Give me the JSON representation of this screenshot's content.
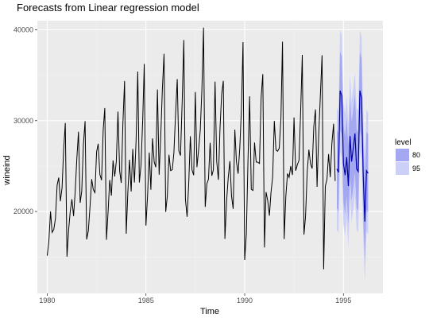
{
  "chart_data": {
    "type": "line",
    "title": "Forecasts from Linear regression model",
    "xlabel": "Time",
    "ylabel": "wineind",
    "xlim": [
      1979.5,
      1997.0
    ],
    "ylim": [
      11000,
      41000
    ],
    "x_ticks": [
      1980,
      1985,
      1990,
      1995
    ],
    "y_ticks": [
      20000,
      30000,
      40000
    ],
    "grid": true,
    "legend": {
      "title": "level",
      "position": "right",
      "entries": [
        {
          "label": "80",
          "color": "#a3a8f0"
        },
        {
          "label": "95",
          "color": "#ccd0f7"
        }
      ]
    },
    "colors": {
      "panel": "#ebebeb",
      "grid_major": "#ffffff",
      "history": "#000000",
      "forecast": "#0000aa",
      "band80": "#a3a8f0",
      "band95": "#ccd0f7"
    },
    "history": {
      "start": 1980.0,
      "frequency": 12,
      "values": [
        15136,
        16733,
        20016,
        17708,
        18019,
        19227,
        22893,
        23739,
        21133,
        22591,
        26786,
        29740,
        15028,
        17977,
        20008,
        21354,
        19498,
        22125,
        25817,
        28779,
        20960,
        22254,
        27392,
        29945,
        16933,
        17892,
        20533,
        23569,
        22417,
        22084,
        26580,
        27454,
        24081,
        23451,
        28991,
        31386,
        16896,
        20045,
        23471,
        21747,
        25621,
        23859,
        25500,
        30998,
        24475,
        23145,
        29701,
        34365,
        17556,
        22077,
        25702,
        22214,
        26886,
        23191,
        27831,
        35406,
        23195,
        25110,
        30009,
        36242,
        18450,
        21845,
        26488,
        22394,
        28057,
        25451,
        24872,
        33424,
        24052,
        28449,
        33533,
        37351,
        19969,
        21701,
        26249,
        24493,
        24603,
        26485,
        30723,
        34569,
        26689,
        26157,
        32064,
        38870,
        21337,
        19419,
        23166,
        28286,
        24570,
        24001,
        33151,
        24878,
        26804,
        28967,
        33311,
        40226,
        20504,
        23060,
        23562,
        27562,
        23940,
        24584,
        34303,
        25517,
        23494,
        29095,
        32903,
        34379,
        16991,
        21109,
        23740,
        25552,
        21752,
        20294,
        29009,
        25500,
        24166,
        26960,
        31222,
        38641,
        14672,
        17543,
        25453,
        32683,
        22449,
        22316,
        27595,
        25451,
        25421,
        25288,
        32568,
        35110,
        16052,
        22146,
        21198,
        19543,
        22084,
        23816,
        29961,
        26773,
        26635,
        26972,
        30207,
        38687,
        16974,
        21697,
        24179,
        23757,
        25013,
        24019,
        30345,
        24488,
        25156,
        25650,
        30923,
        37240,
        17466,
        19463,
        24352,
        26805,
        25236,
        24735,
        29356,
        31234,
        22724,
        28496,
        32857,
        37198,
        13652,
        22784,
        23565,
        26323,
        23779,
        27549,
        29660,
        23356
      ]
    },
    "forecast": {
      "start": 1994.6667,
      "frequency": 12,
      "mean": [
        24700,
        24300,
        33300,
        32700,
        25300,
        24000,
        26000,
        22800,
        28300,
        25500,
        27000,
        28600,
        24700,
        24400,
        33300,
        32500,
        24300,
        18900,
        24500,
        24200
      ],
      "lo80": [
        20400,
        20000,
        29000,
        28400,
        21000,
        19700,
        21700,
        18500,
        24000,
        21200,
        22700,
        24300,
        20400,
        20100,
        29000,
        28200,
        20000,
        14600,
        20200,
        19900
      ],
      "hi80": [
        29000,
        28600,
        37600,
        37000,
        29600,
        28300,
        30300,
        27100,
        32600,
        29800,
        31300,
        32900,
        29000,
        28700,
        37600,
        36800,
        28600,
        23200,
        28800,
        28500
      ],
      "lo95": [
        18000,
        17600,
        26600,
        26000,
        18600,
        17300,
        19300,
        16100,
        21600,
        18800,
        20300,
        21900,
        18000,
        17700,
        26600,
        25800,
        17600,
        12200,
        17800,
        17500
      ],
      "hi95": [
        31400,
        31000,
        40000,
        39400,
        32000,
        30700,
        32700,
        29500,
        35000,
        32200,
        33700,
        35300,
        31400,
        31100,
        40000,
        39200,
        31000,
        25600,
        31200,
        30900
      ]
    }
  }
}
